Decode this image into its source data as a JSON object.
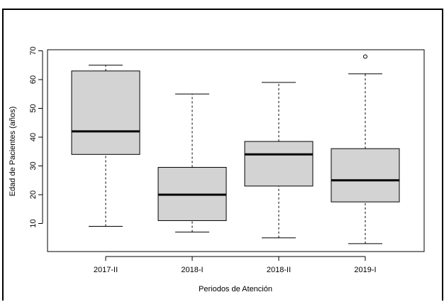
{
  "chart_data": {
    "type": "boxplot",
    "xlabel": "Periodos de Atención",
    "ylabel": "Edad de Pacientes (años)",
    "ylim": [
      0,
      70
    ],
    "y_ticks": [
      10,
      20,
      30,
      40,
      50,
      60,
      70
    ],
    "y_tick_labels": [
      "10",
      "20",
      "30",
      "40",
      "50",
      "60",
      "70"
    ],
    "categories": [
      "2017-II",
      "2018-I",
      "2018-II",
      "2019-I"
    ],
    "boxes": [
      {
        "category": "2017-II",
        "min": 9,
        "q1": 34,
        "median": 42,
        "q3": 63,
        "max": 65,
        "outliers": []
      },
      {
        "category": "2018-I",
        "min": 7,
        "q1": 11,
        "median": 20,
        "q3": 29.5,
        "max": 55,
        "outliers": []
      },
      {
        "category": "2018-II",
        "min": 5,
        "q1": 23,
        "median": 34,
        "q3": 38.5,
        "max": 59,
        "outliers": []
      },
      {
        "category": "2019-I",
        "min": 3,
        "q1": 17.5,
        "median": 25,
        "q3": 36,
        "max": 62,
        "outliers": [
          68
        ]
      }
    ],
    "box_fill": "#d3d3d3",
    "grid": false
  }
}
